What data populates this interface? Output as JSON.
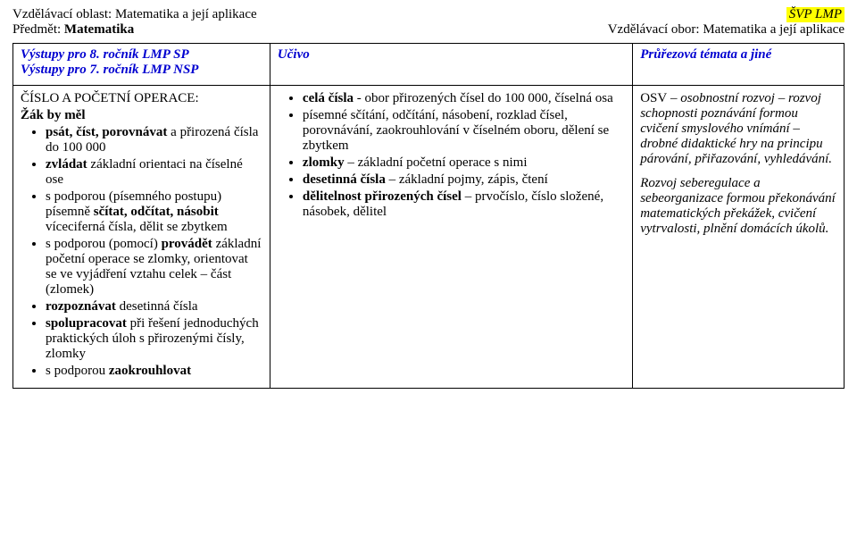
{
  "header": {
    "area_label": "Vzdělávací oblast:",
    "area_value": "Matematika a její aplikace",
    "subject_label": "Předmět:",
    "subject_value": "Matematika",
    "badge": "ŠVP LMP",
    "field_label": "Vzdělávací obor:",
    "field_value": "Matematika a její aplikace"
  },
  "table_header": {
    "col1_line1": "Výstupy pro 8. ročník LMP SP",
    "col1_line2": "Výstupy pro 7. ročník LMP NSP",
    "col2": "Učivo",
    "col3": "Průřezová témata a jiné"
  },
  "col1": {
    "section": "ČÍSLO A POČETNÍ OPERACE:",
    "lead": "Žák by měl",
    "items": [
      {
        "prefix": "psát, číst, porovnávat",
        "rest": " a přirozená čísla do 100 000"
      },
      {
        "prefix": "zvládat",
        "rest": " základní orientaci na číselné ose"
      },
      {
        "prefix": "",
        "rest": "s podporou (písemného postupu) písemně ",
        "bold2": "sčítat, odčítat, násobit",
        "rest2": " víceciferná čísla, dělit se zbytkem"
      },
      {
        "prefix": "",
        "rest": "s podporou (pomocí) ",
        "bold2": "provádět",
        "rest2": " základní početní operace se zlomky, orientovat se ve vyjádření vztahu celek – část (zlomek)"
      },
      {
        "prefix": "rozpoznávat",
        "rest": " desetinná čísla"
      },
      {
        "prefix": "spolupracovat",
        "rest": " při řešení jednoduchých praktických úloh s přirozenými čísly, zlomky"
      },
      {
        "prefix": "",
        "rest": "s podporou ",
        "bold2": "zaokrouhlovat",
        "rest2": ""
      }
    ]
  },
  "col2": {
    "items": [
      {
        "label": "celá čísla",
        "rest": " - obor přirozených čísel do 100 000, číselná osa"
      },
      {
        "label": "",
        "rest": "písemné sčítání, odčítání, násobení, rozklad čísel, porovnávání, zaokrouhlování v číselném oboru, dělení se zbytkem"
      },
      {
        "label": "zlomky",
        "rest": " – základní početní operace s nimi"
      },
      {
        "label": "desetinná čísla",
        "rest": " – základní pojmy, zápis, čtení"
      },
      {
        "label": "dělitelnost přirozených čísel",
        "rest": " – prvočíslo, číslo složené, násobek, dělitel"
      }
    ]
  },
  "col3": {
    "p1_lead": "OSV",
    "p1": " – osobnostní rozvoj – rozvoj schopnosti poznávání formou cvičení smyslového vnímání – drobné didaktické hry na principu párování, přiřazování, vyhledávání.",
    "p2": "Rozvoj seberegulace a sebeorganizace formou překonávání matematických překážek, cvičení  vytrvalosti, plnění domácích úkolů."
  },
  "style": {
    "link_blue": "#0000d0",
    "highlight": "#ffff00"
  }
}
